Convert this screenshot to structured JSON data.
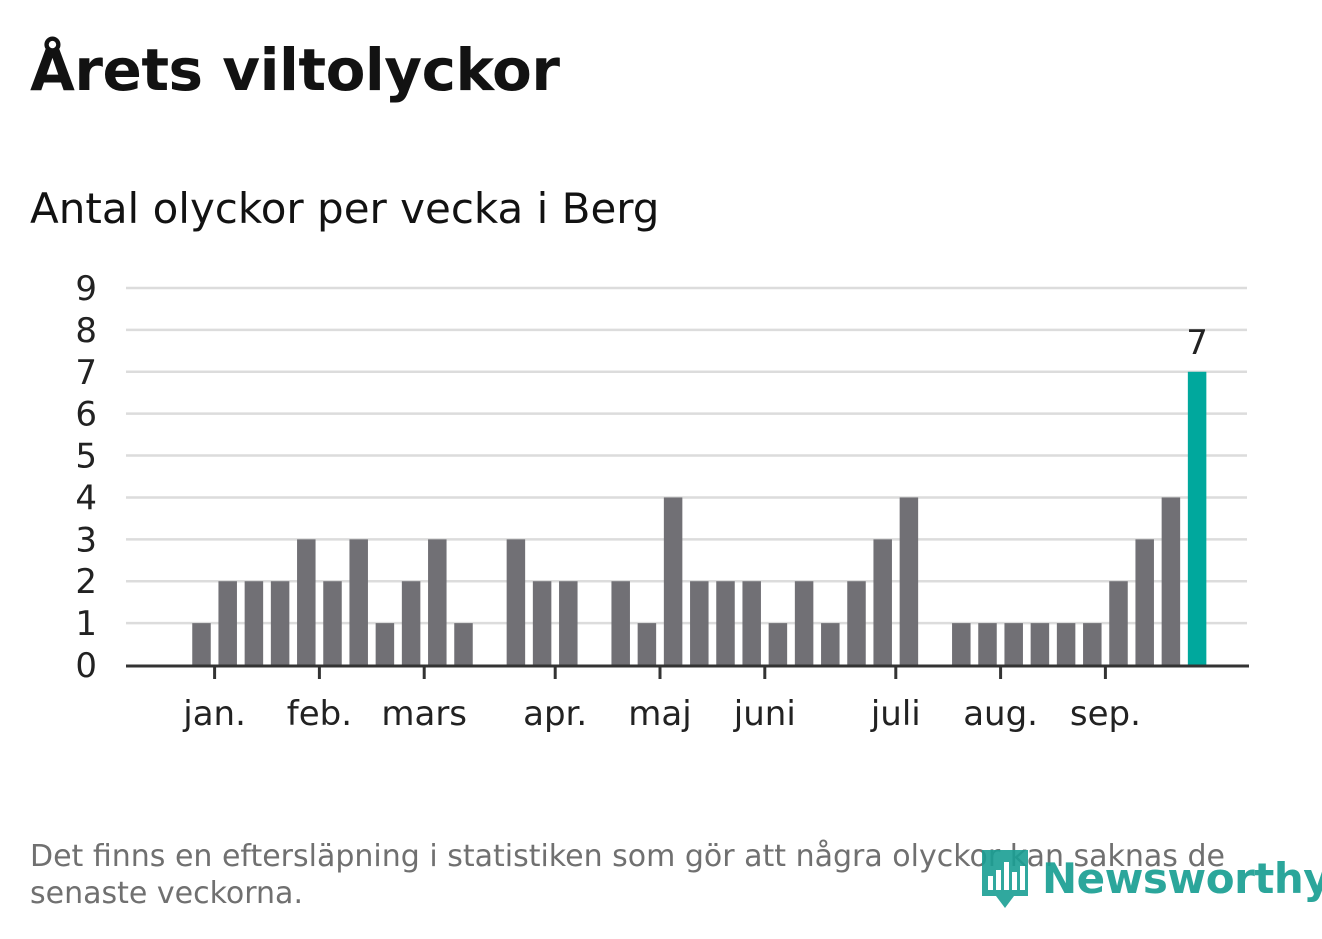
{
  "title": "Årets viltolyckor",
  "subtitle": "Antal olyckor per vecka i Berg",
  "footnote": "Det finns en eftersläpning i statistiken som gör att några olyckor kan saknas de senaste veckorna.",
  "brand": {
    "name": "Newsworthy",
    "color": "#1a9f93"
  },
  "colors": {
    "bar": "#717075",
    "highlight": "#00a89d",
    "grid": "#dcdcdc",
    "axis": "#333333",
    "text": "#222222"
  },
  "chart_data": {
    "type": "bar",
    "title": "Antal olyckor per vecka i Berg",
    "xlabel": "",
    "ylabel": "",
    "ylim": [
      0,
      9
    ],
    "yticks": [
      "0",
      "1",
      "2",
      "3",
      "4",
      "5",
      "6",
      "7",
      "8",
      "9"
    ],
    "grid": true,
    "week_count": 40,
    "values": [
      null,
      null,
      1,
      2,
      2,
      2,
      3,
      2,
      3,
      1,
      2,
      3,
      1,
      null,
      3,
      2,
      2,
      null,
      2,
      1,
      4,
      2,
      2,
      2,
      1,
      2,
      1,
      2,
      3,
      4,
      null,
      1,
      1,
      1,
      1,
      1,
      1,
      2,
      3,
      4,
      7
    ],
    "highlight": {
      "index": 40,
      "value": 7,
      "label": "7"
    },
    "month_labels": [
      {
        "label": "jan.",
        "week": 2.5
      },
      {
        "label": "feb.",
        "week": 6.5
      },
      {
        "label": "mars",
        "week": 10.5
      },
      {
        "label": "apr.",
        "week": 15.5
      },
      {
        "label": "maj",
        "week": 19.5
      },
      {
        "label": "juni",
        "week": 23.5
      },
      {
        "label": "juli",
        "week": 28.5
      },
      {
        "label": "aug.",
        "week": 32.5
      },
      {
        "label": "sep.",
        "week": 36.5
      }
    ]
  }
}
